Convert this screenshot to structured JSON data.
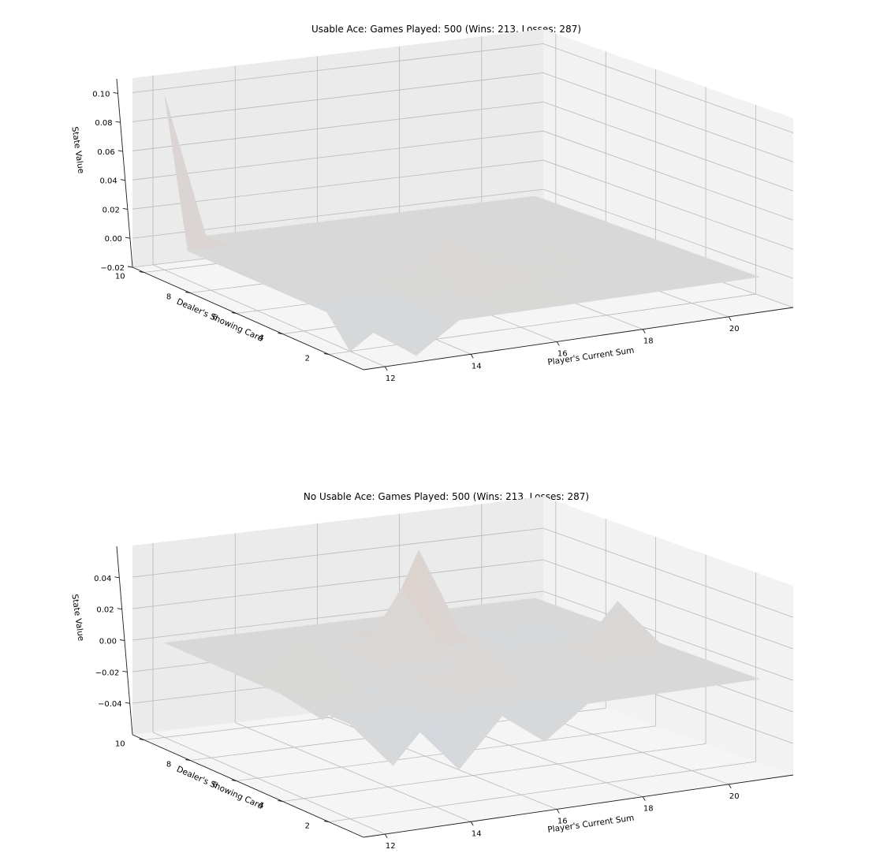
{
  "colors": {
    "surface_base": "#d8d8d8",
    "surface_high": "#ddd2cc",
    "surface_low": "#cfd6e0"
  },
  "chart_data": [
    {
      "type": "surface3d",
      "title": "Usable Ace: Games Played: 500 (Wins: 213, Losses: 287)",
      "xlabel": "Player's Current Sum",
      "ylabel": "Dealer's Showing Card",
      "zlabel": "State Value",
      "x": [
        12,
        13,
        14,
        15,
        16,
        17,
        18,
        19,
        20,
        21
      ],
      "y": [
        1,
        2,
        3,
        4,
        5,
        6,
        7,
        8,
        9,
        10
      ],
      "xlim": [
        11.5,
        21.5
      ],
      "ylim": [
        0.5,
        10.5
      ],
      "zlim": [
        -0.02,
        0.11
      ],
      "xticks": [
        12,
        14,
        16,
        18,
        20
      ],
      "yticks": [
        2,
        4,
        6,
        8,
        10
      ],
      "zticks": [
        -0.02,
        0.0,
        0.02,
        0.04,
        0.06,
        0.08,
        0.1
      ],
      "ztick_labels": [
        "−0.02",
        "0.00",
        "0.02",
        "0.04",
        "0.06",
        "0.08",
        "0.10"
      ],
      "grid": true,
      "z": [
        [
          0,
          -0.02,
          0,
          0,
          0,
          0,
          0,
          0,
          0,
          0
        ],
        [
          -0.02,
          0,
          0,
          0,
          0.01,
          0,
          0,
          0,
          0,
          0
        ],
        [
          0,
          -0.02,
          0,
          0,
          0.02,
          0,
          0,
          0,
          0,
          0
        ],
        [
          0,
          0,
          0,
          0.015,
          0,
          0.01,
          0,
          0,
          0,
          0
        ],
        [
          0,
          0,
          0,
          0,
          0.025,
          0,
          0.01,
          0,
          0,
          0
        ],
        [
          0,
          0.02,
          0,
          0,
          0,
          0,
          0,
          0,
          0,
          0
        ],
        [
          0,
          0,
          0,
          0,
          0,
          0,
          0,
          0,
          0,
          0
        ],
        [
          0,
          0,
          0,
          0,
          0,
          0,
          0,
          0,
          0,
          0
        ],
        [
          0,
          0,
          0,
          0,
          0,
          0,
          0,
          0,
          0,
          0
        ],
        [
          0.1,
          0,
          0,
          0,
          0,
          0,
          0,
          0,
          0,
          0
        ]
      ]
    },
    {
      "type": "surface3d",
      "title": "No Usable Ace: Games Played: 500 (Wins: 213, Losses: 287)",
      "xlabel": "Player's Current Sum",
      "ylabel": "Dealer's Showing Card",
      "zlabel": "State Value",
      "x": [
        12,
        13,
        14,
        15,
        16,
        17,
        18,
        19,
        20,
        21
      ],
      "y": [
        1,
        2,
        3,
        4,
        5,
        6,
        7,
        8,
        9,
        10
      ],
      "xlim": [
        11.5,
        21.5
      ],
      "ylim": [
        0.5,
        10.5
      ],
      "zlim": [
        -0.06,
        0.06
      ],
      "xticks": [
        12,
        14,
        16,
        18,
        20
      ],
      "yticks": [
        2,
        4,
        6,
        8,
        10
      ],
      "zticks": [
        -0.04,
        -0.02,
        0.0,
        0.02,
        0.04
      ],
      "ztick_labels": [
        "−0.04",
        "−0.02",
        "0.00",
        "0.02",
        "0.04"
      ],
      "grid": true,
      "z": [
        [
          0,
          0,
          -0.03,
          0,
          -0.02,
          0,
          0,
          0,
          0,
          0
        ],
        [
          0,
          -0.03,
          0,
          0,
          0,
          0,
          0,
          0,
          0,
          0
        ],
        [
          0,
          0,
          0,
          0,
          0,
          0,
          0,
          0,
          0,
          0
        ],
        [
          0,
          0,
          0,
          0,
          0.03,
          0,
          0,
          0,
          0,
          0
        ],
        [
          0,
          -0.02,
          0,
          0,
          0,
          0,
          0,
          0,
          0.03,
          0
        ],
        [
          0,
          0.03,
          0,
          0,
          0,
          0,
          0,
          0,
          0,
          0
        ],
        [
          0,
          0,
          0,
          0,
          0.04,
          0,
          0,
          -0.01,
          0,
          0
        ],
        [
          0,
          0,
          0,
          0,
          0,
          0.055,
          0,
          0,
          0,
          0
        ],
        [
          0,
          0,
          0,
          0,
          0,
          0,
          0,
          0,
          0,
          0
        ],
        [
          0,
          0,
          0,
          0,
          0,
          0,
          0,
          0,
          0,
          0
        ]
      ]
    }
  ]
}
